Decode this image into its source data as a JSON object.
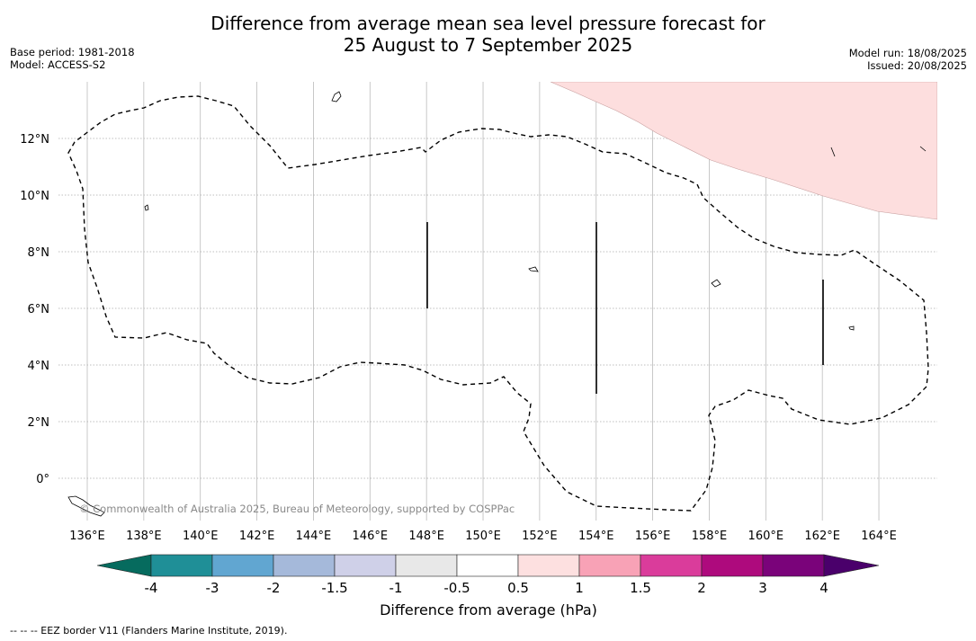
{
  "title": {
    "line1": "Difference from average mean sea level pressure forecast for",
    "line2": "25 August to 7 September 2025"
  },
  "meta_left": {
    "base_period": "Base period: 1981-2018",
    "model": "Model: ACCESS-S2"
  },
  "meta_right": {
    "model_run": "Model run: 18/08/2025",
    "issued": "Issued: 20/08/2025"
  },
  "map": {
    "lon_labels": [
      "136°E",
      "138°E",
      "140°E",
      "142°E",
      "144°E",
      "146°E",
      "148°E",
      "150°E",
      "152°E",
      "154°E",
      "156°E",
      "158°E",
      "160°E",
      "162°E",
      "164°E"
    ],
    "lon_values": [
      136,
      138,
      140,
      142,
      144,
      146,
      148,
      150,
      152,
      154,
      156,
      158,
      160,
      162,
      164
    ],
    "lat_labels": [
      "0°",
      "2°N",
      "4°N",
      "6°N",
      "8°N",
      "10°N",
      "12°N"
    ],
    "lat_values": [
      0,
      2,
      4,
      6,
      8,
      10,
      12
    ],
    "copyright": "© Commonwealth of Australia 2025, Bureau of Meteorology, supported by COSPPac",
    "shaded_region_category": "0.5 to 1",
    "shaded_region_color": "#fddede",
    "eez_line_style": "dashed",
    "grid": true
  },
  "legend": {
    "title": "Difference from average (hPa)",
    "tick_labels": [
      "-4",
      "-3",
      "-2",
      "-1.5",
      "-1",
      "-0.5",
      "0.5",
      "1",
      "1.5",
      "2",
      "3",
      "4"
    ],
    "colors": [
      "#1f8f97",
      "#61a6d1",
      "#a5b9da",
      "#cfd0e8",
      "#e8e8e8",
      "#ffffff",
      "#fde0e0",
      "#f8a2b6",
      "#da3c9b",
      "#ae0a7d",
      "#7a037a"
    ],
    "under_color": "#066b5e",
    "over_color": "#4a006b"
  },
  "footnote": "-- -- -- EEZ border V11 (Flanders Marine Institute, 2019)."
}
